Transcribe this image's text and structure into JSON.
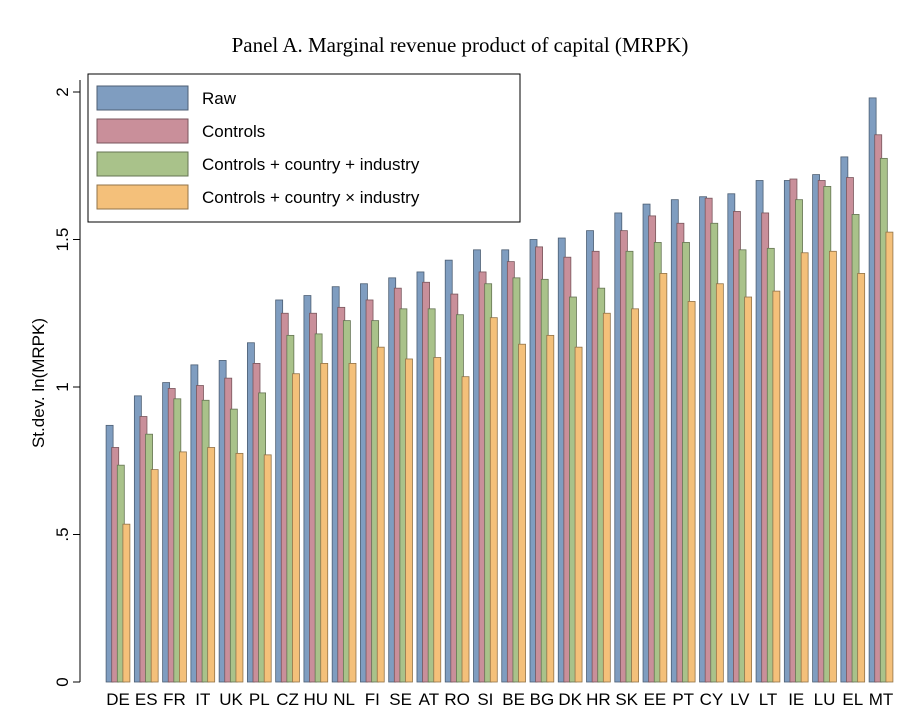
{
  "chart_data": {
    "type": "bar",
    "title": "Panel A. Marginal revenue product of capital (MRPK)",
    "y_label": "St.dev. ln(MRPK)",
    "categories": [
      "DE",
      "ES",
      "FR",
      "IT",
      "UK",
      "PL",
      "CZ",
      "HU",
      "NL",
      "FI",
      "SE",
      "AT",
      "RO",
      "SI",
      "BE",
      "BG",
      "DK",
      "HR",
      "SK",
      "EE",
      "PT",
      "CY",
      "LV",
      "LT",
      "IE",
      "LU",
      "EL",
      "MT"
    ],
    "series": [
      {
        "name": "Raw",
        "color": "#7f9dc0",
        "values": [
          0.87,
          0.97,
          1.015,
          1.075,
          1.09,
          1.15,
          1.295,
          1.31,
          1.34,
          1.35,
          1.37,
          1.39,
          1.43,
          1.465,
          1.465,
          1.5,
          1.505,
          1.53,
          1.59,
          1.62,
          1.635,
          1.645,
          1.655,
          1.7,
          1.7,
          1.72,
          1.78,
          1.98
        ]
      },
      {
        "name": "Controls",
        "color": "#c98f9a",
        "values": [
          0.795,
          0.9,
          0.995,
          1.005,
          1.03,
          1.08,
          1.25,
          1.25,
          1.27,
          1.295,
          1.335,
          1.355,
          1.315,
          1.39,
          1.425,
          1.475,
          1.44,
          1.46,
          1.53,
          1.58,
          1.555,
          1.64,
          1.595,
          1.59,
          1.705,
          1.7,
          1.71,
          1.855
        ]
      },
      {
        "name": "Controls + country + industry",
        "color": "#a9c28a",
        "values": [
          0.735,
          0.84,
          0.96,
          0.955,
          0.925,
          0.98,
          1.175,
          1.18,
          1.225,
          1.225,
          1.265,
          1.265,
          1.245,
          1.35,
          1.37,
          1.365,
          1.305,
          1.335,
          1.46,
          1.49,
          1.49,
          1.555,
          1.465,
          1.47,
          1.635,
          1.68,
          1.585,
          1.775
        ]
      },
      {
        "name": "Controls + country × industry",
        "color": "#f4c07a",
        "values": [
          0.535,
          0.72,
          0.78,
          0.795,
          0.775,
          0.77,
          1.045,
          1.08,
          1.08,
          1.135,
          1.095,
          1.1,
          1.035,
          1.235,
          1.145,
          1.175,
          1.135,
          1.25,
          1.265,
          1.385,
          1.29,
          1.35,
          1.305,
          1.325,
          1.455,
          1.46,
          1.385,
          1.525
        ]
      }
    ],
    "ylim": [
      0,
      2
    ],
    "yticks": [
      0,
      {
        "value": 0.5,
        "label": ".5"
      },
      1,
      {
        "value": 1.5,
        "label": "1.5"
      },
      2
    ],
    "legend": "upper left"
  }
}
